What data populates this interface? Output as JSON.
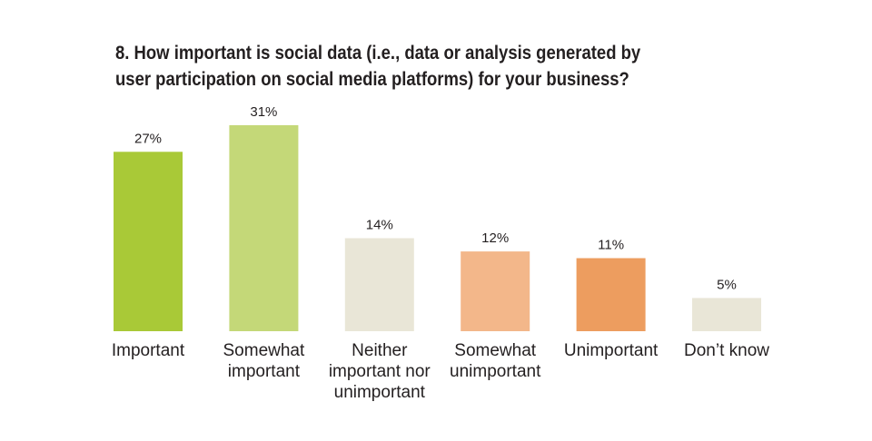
{
  "chart_data": {
    "type": "bar",
    "title": "8. How important is social data (i.e., data or analysis generated by\nuser participation on social media platforms) for your business?",
    "categories": [
      [
        "Important"
      ],
      [
        "Somewhat",
        "important"
      ],
      [
        "Neither",
        "important nor",
        "unimportant"
      ],
      [
        "Somewhat",
        "unimportant"
      ],
      [
        "Unimportant"
      ],
      [
        "Don’t know"
      ]
    ],
    "values": [
      27,
      31,
      14,
      12,
      11,
      5
    ],
    "value_labels": [
      "27%",
      "31%",
      "14%",
      "12%",
      "11%",
      "5%"
    ],
    "colors": [
      "#a9c937",
      "#c4d878",
      "#e9e6d7",
      "#f3b78a",
      "#ed9d5f",
      "#e9e6d7"
    ],
    "ylim": [
      0,
      31
    ],
    "grid": false,
    "legend": "none"
  }
}
